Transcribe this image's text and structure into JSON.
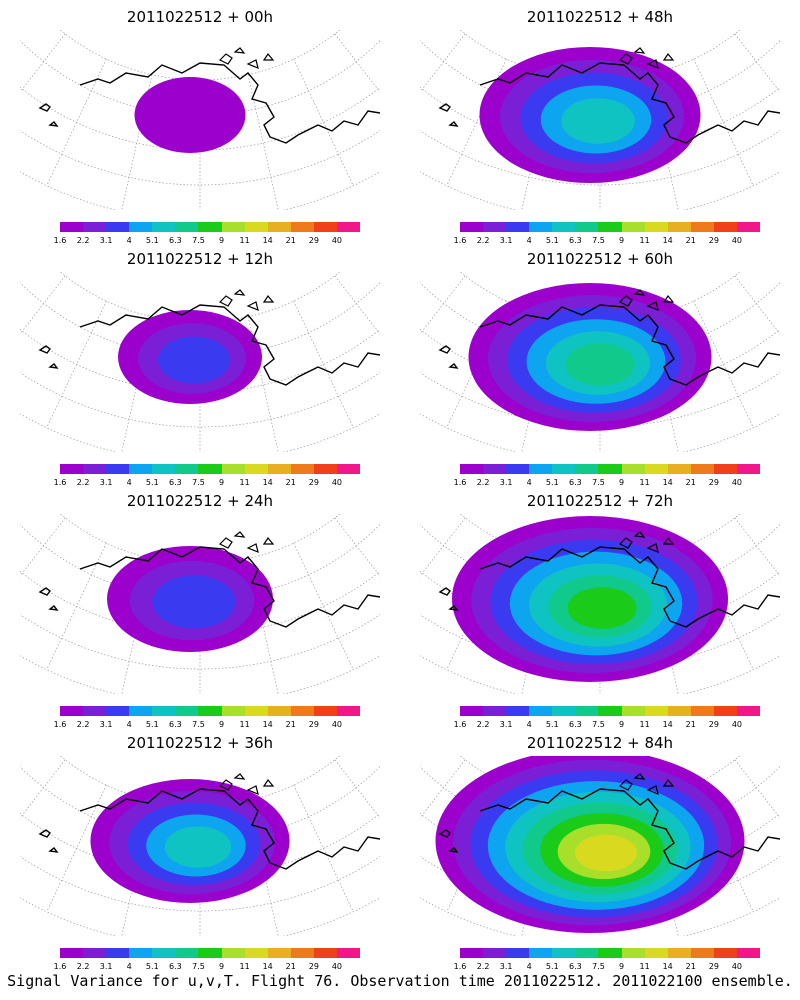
{
  "panels": [
    {
      "title": "2011022512 + 00h",
      "level": 0.05,
      "peak": 0.0
    },
    {
      "title": "2011022512 + 48h",
      "level": 0.55,
      "peak": 0.45
    },
    {
      "title": "2011022512 + 12h",
      "level": 0.2,
      "peak": 0.15
    },
    {
      "title": "2011022512 + 60h",
      "level": 0.65,
      "peak": 0.55
    },
    {
      "title": "2011022512 + 24h",
      "level": 0.3,
      "peak": 0.25
    },
    {
      "title": "2011022512 + 72h",
      "level": 0.8,
      "peak": 0.6
    },
    {
      "title": "2011022512 + 36h",
      "level": 0.45,
      "peak": 0.35
    },
    {
      "title": "2011022512 + 84h",
      "level": 0.95,
      "peak": 0.7
    }
  ],
  "colorbar": {
    "ticks": [
      "1.6",
      "2.2",
      "3.1",
      "4",
      "5.1",
      "6.3",
      "7.5",
      "9",
      "11",
      "14",
      "21",
      "29",
      "40"
    ],
    "colors": [
      "#9b00cc",
      "#7a1fd6",
      "#3a3af0",
      "#0ea5f0",
      "#10c3c3",
      "#10c98a",
      "#1acb1a",
      "#a8df2a",
      "#d9d920",
      "#e8b020",
      "#ee7a1c",
      "#f0401a",
      "#f01888"
    ]
  },
  "caption": "Signal Variance for u,v,T. Flight 76. Observation time 2011022512. 2011022100 ensemble."
}
